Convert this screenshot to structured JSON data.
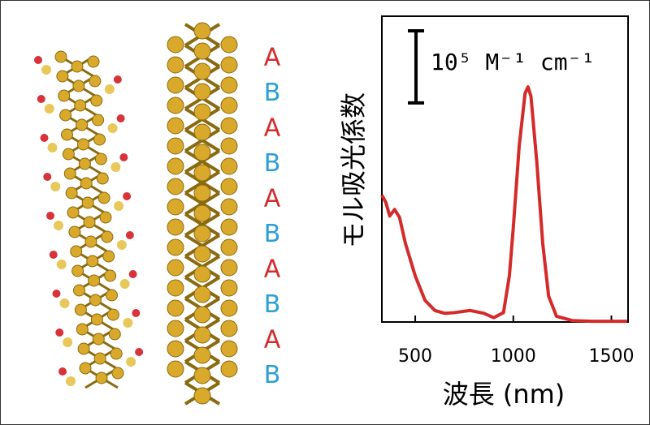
{
  "chart_data": {
    "type": "line",
    "x_label": "波長 (nm)",
    "y_label": "モル吸光係数",
    "x": [
      330,
      350,
      370,
      395,
      420,
      450,
      500,
      550,
      600,
      650,
      700,
      780,
      850,
      900,
      950,
      980,
      1000,
      1030,
      1060,
      1075,
      1090,
      1120,
      1150,
      1180,
      1220,
      1300,
      1400,
      1580
    ],
    "series": [
      {
        "color": "#d42a2a",
        "values": [
          1.76,
          1.66,
          1.47,
          1.56,
          1.45,
          1.09,
          0.64,
          0.3,
          0.16,
          0.12,
          0.13,
          0.16,
          0.12,
          0.06,
          0.13,
          0.64,
          1.31,
          2.44,
          3.17,
          3.26,
          3.13,
          2.21,
          1.09,
          0.36,
          0.08,
          0.02,
          0.01,
          0.01
        ]
      }
    ],
    "xlim": [
      330,
      1585
    ],
    "xticks": [
      500,
      1000,
      1500
    ],
    "ylim": [
      0,
      4.24
    ],
    "scale_bar": {
      "value": 1,
      "label": "10⁵ M⁻¹ cm⁻¹"
    }
  },
  "structure": {
    "stacking": [
      "A",
      "B",
      "A",
      "B",
      "A",
      "B",
      "A",
      "B",
      "A",
      "B"
    ],
    "colors": {
      "A": "#d42a2a",
      "B": "#2a9fd6"
    }
  }
}
